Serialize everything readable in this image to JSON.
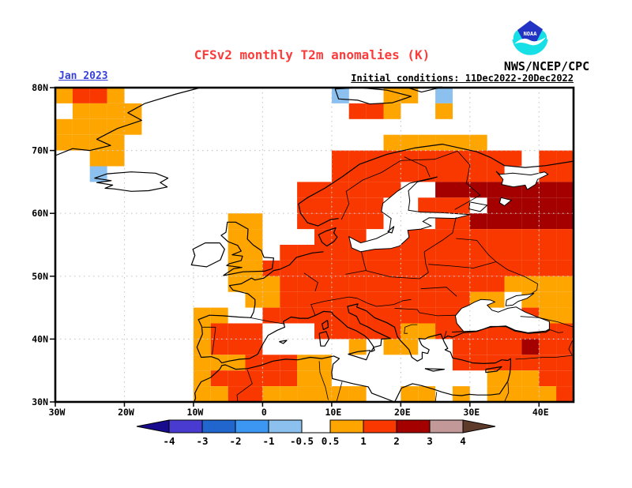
{
  "header": {
    "title": "CFSv2 monthly T2m anomalies (K)",
    "forecast_date": "Jan 2023",
    "init_conditions": "Initial conditions: 11Dec2022-20Dec2022",
    "org": "NWS/NCEP/CPC",
    "logo_text": "NOAA"
  },
  "colors": {
    "title": "#FA3C3C",
    "date_label": "#3742D8",
    "text": "#000000",
    "gridline": "#C9C9C9",
    "coastline": "#000000",
    "logo_dark_blue": "#2334C4",
    "logo_cyan": "#17DFE6"
  },
  "chart_data": {
    "type": "heatmap",
    "title": "CFSv2 monthly T2m anomalies (K)",
    "variable": "2-meter temperature anomaly",
    "units": "K",
    "forecast_month": "Jan 2023",
    "initial_conditions": "11Dec2022-20Dec2022",
    "extent": {
      "lon_min": -30,
      "lon_max": 45,
      "lat_min": 30,
      "lat_max": 80
    },
    "x_ticks": [
      {
        "label": "30W",
        "lon": -30
      },
      {
        "label": "20W",
        "lon": -20
      },
      {
        "label": "10W",
        "lon": -10
      },
      {
        "label": "0",
        "lon": 0
      },
      {
        "label": "10E",
        "lon": 10
      },
      {
        "label": "20E",
        "lon": 20
      },
      {
        "label": "30E",
        "lon": 30
      },
      {
        "label": "40E",
        "lon": 40
      }
    ],
    "y_ticks": [
      {
        "label": "80N",
        "lat": 80
      },
      {
        "label": "70N",
        "lat": 70
      },
      {
        "label": "60N",
        "lat": 60
      },
      {
        "label": "50N",
        "lat": 50
      },
      {
        "label": "40N",
        "lat": 40
      },
      {
        "label": "30N",
        "lat": 30
      }
    ],
    "grid_lons": [
      -20,
      -10,
      0,
      10,
      20,
      30,
      40
    ],
    "grid_lats": [
      70,
      60,
      50,
      40
    ],
    "cell_deg": 2.5,
    "value_classes": {
      "b": "-1 to -0.5 K",
      "o": "0.5 to 1 K",
      "r": "1 to 2 K",
      "d": "2 to 3 K",
      ".": "between -0.5 and 0.5 K or sea (white)"
    },
    "class_colors": {
      "b": "#8CC0EE",
      "o": "#FFA500",
      "r": "#F93800",
      "d": "#A40000"
    },
    "anomaly_grid": [
      "orro............b..oo.b.......",
      ".oooo............rro..o.......",
      "ooooo.........................",
      "oooo...............oooooo.....",
      "..oo............rrrrrrrrrrr.rr",
      "..b.............rrrrrrrrrr..rr",
      "..............rrrrrr..dddddddd",
      "..............rrrrr..rrr.ddddd",
      "..........oo..rrrrr...rrdddddd",
      "..........oo...rrr..rrrrrrrrrr",
      "..........oo.rrrrrrrrrrrrrrrrr",
      "..........oorrrrrrrrrrrrrrrrrr",
      "..........ooorrrrrrrrrrrrroooo",
      "...........oorrrrrrrrrrroo.ooo",
      "........oo..rrrrrrrrrrrr...roo",
      "........orrr...rrrrroorrrrrrrr",
      "........orrr.....o.oo..rrrrdrr",
      "........ooorrroo.......rrrrrrr",
      "........orrrrroo.........ooorr",
      "........oorroooooo..oo.o.oooor"
    ],
    "colorbar": {
      "labels": [
        "-4",
        "-3",
        "-2",
        "-1",
        "-0.5",
        "0.5",
        "1",
        "2",
        "3",
        "4"
      ],
      "neg_colors": [
        "#4A3BD0",
        "#2066CC",
        "#3B97F2",
        "#8CC0EE"
      ],
      "pos_colors": [
        "#FFA500",
        "#F93800",
        "#A40000",
        "#C29898"
      ],
      "left_arrow_color": "#190B8E",
      "right_arrow_color": "#5E3A2A"
    }
  }
}
